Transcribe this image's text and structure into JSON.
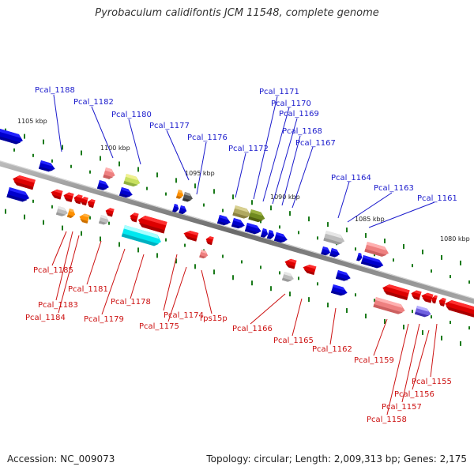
{
  "title": "Pyrobaculum calidifontis JCM 11548, complete genome",
  "footer": {
    "accession": "Accession: NC_009073",
    "topology": "Topology: circular; Length: 2,009,313 bp; Genes: 2,175"
  },
  "colors": {
    "backbone": "#7f7f7f",
    "forward_strand": "#0000ee",
    "reverse_strand": "#ee0000",
    "forward_label": "#1a1acc",
    "reverse_label": "#cc1111",
    "tick": "#1a7a1a"
  },
  "kbp_labels": [
    "1105 kbp",
    "1100 kbp",
    "1095 kbp",
    "1090 kbp",
    "1085 kbp",
    "1080 kbp"
  ],
  "forward_labels": [
    "Pcal_1188",
    "Pcal_1182",
    "Pcal_1180",
    "Pcal_1177",
    "Pcal_1176",
    "Pcal_1172",
    "Pcal_1171",
    "Pcal_1170",
    "Pcal_1169",
    "Pcal_1168",
    "Pcal_1167",
    "Pcal_1164",
    "Pcal_1163",
    "Pcal_1161"
  ],
  "reverse_labels": [
    "Pcal_1185",
    "Pcal_1183",
    "Pcal_1184",
    "Pcal_1181",
    "Pcal_1179",
    "Pcal_1178",
    "Pcal_1174",
    "Pcal_1175",
    "rps15p",
    "Pcal_1166",
    "Pcal_1165",
    "Pcal_1162",
    "Pcal_1159",
    "Pcal_1155",
    "Pcal_1156",
    "Pcal_1157",
    "Pcal_1158"
  ]
}
